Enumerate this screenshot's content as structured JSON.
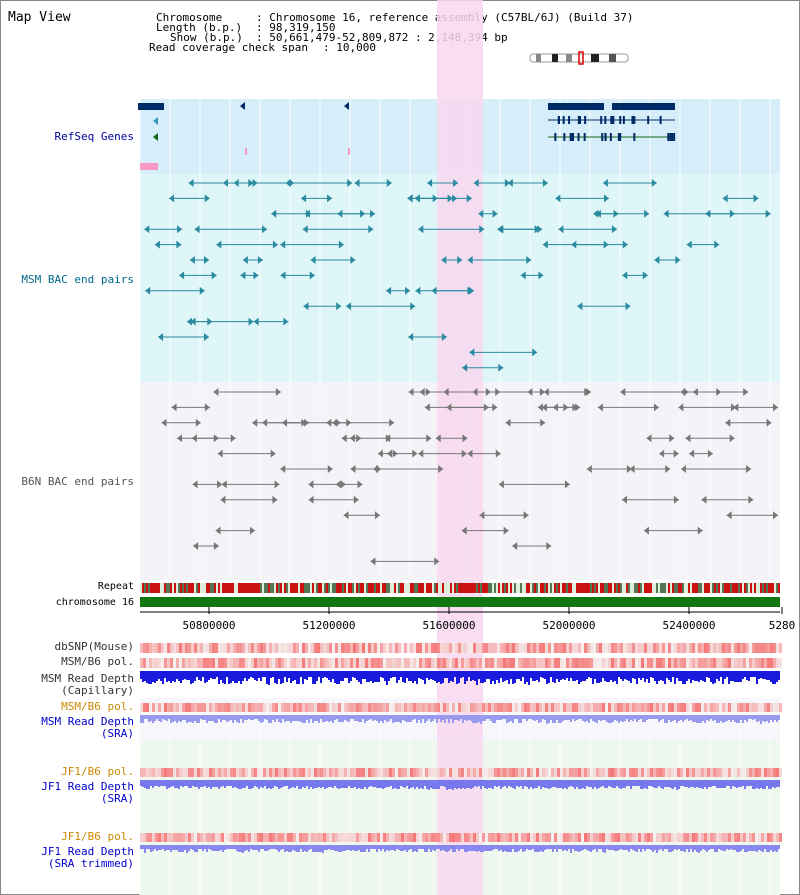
{
  "title": "Map View",
  "header": {
    "chromosome_label": "Chromosome",
    "chromosome_value": ": Chromosome 16, reference assembly (C57BL/6J) (Build 37)",
    "length_label": "Length (b.p.)",
    "length_value": ": 98,319,150",
    "show_label": "Show (b.p.)",
    "show_value": ": 50,661,479-52,809,872 : 2,148,394 bp",
    "coverage_label": "Read coverage check span",
    "coverage_value": ": 10,000"
  },
  "tracks": {
    "refseq": "RefSeq Genes",
    "msm_bac": "MSM BAC end pairs",
    "b6n_bac": "B6N BAC end pairs",
    "repeat": "Repeat",
    "chromosome": "chromosome 16",
    "dbsnp": "dbSNP(Mouse)",
    "msm_pol": "MSM/B6 pol.",
    "msm_depth_cap_1": "MSM Read Depth",
    "msm_depth_cap_2": "(Capillary)",
    "msm_pol_sra": "MSM/B6 pol.",
    "msm_depth_sra_1": "MSM Read Depth",
    "msm_depth_sra_2": "(SRA)",
    "jf1_pol": "JF1/B6 pol.",
    "jf1_depth_1": "JF1 Read Depth",
    "jf1_depth_2": "(SRA)",
    "jf1_pol_trim": "JF1/B6 pol.",
    "jf1_trim_1": "JF1 Read Depth",
    "jf1_trim_2": "(SRA trimmed)"
  },
  "axis": {
    "ticks": [
      "50800000",
      "51200000",
      "51600000",
      "52000000",
      "52400000",
      "5280"
    ]
  },
  "colors": {
    "label_black": "#000000",
    "label_navy": "#000099",
    "label_teal": "#006688",
    "label_gray": "#555555",
    "label_orange": "#cc8800",
    "label_blue": "#0000cc",
    "highlight": "#f8d8f0",
    "msm_bg": "#dff6f8",
    "refseq_bg": "#d6eefa",
    "sra_bg": "#eef8ee"
  }
}
